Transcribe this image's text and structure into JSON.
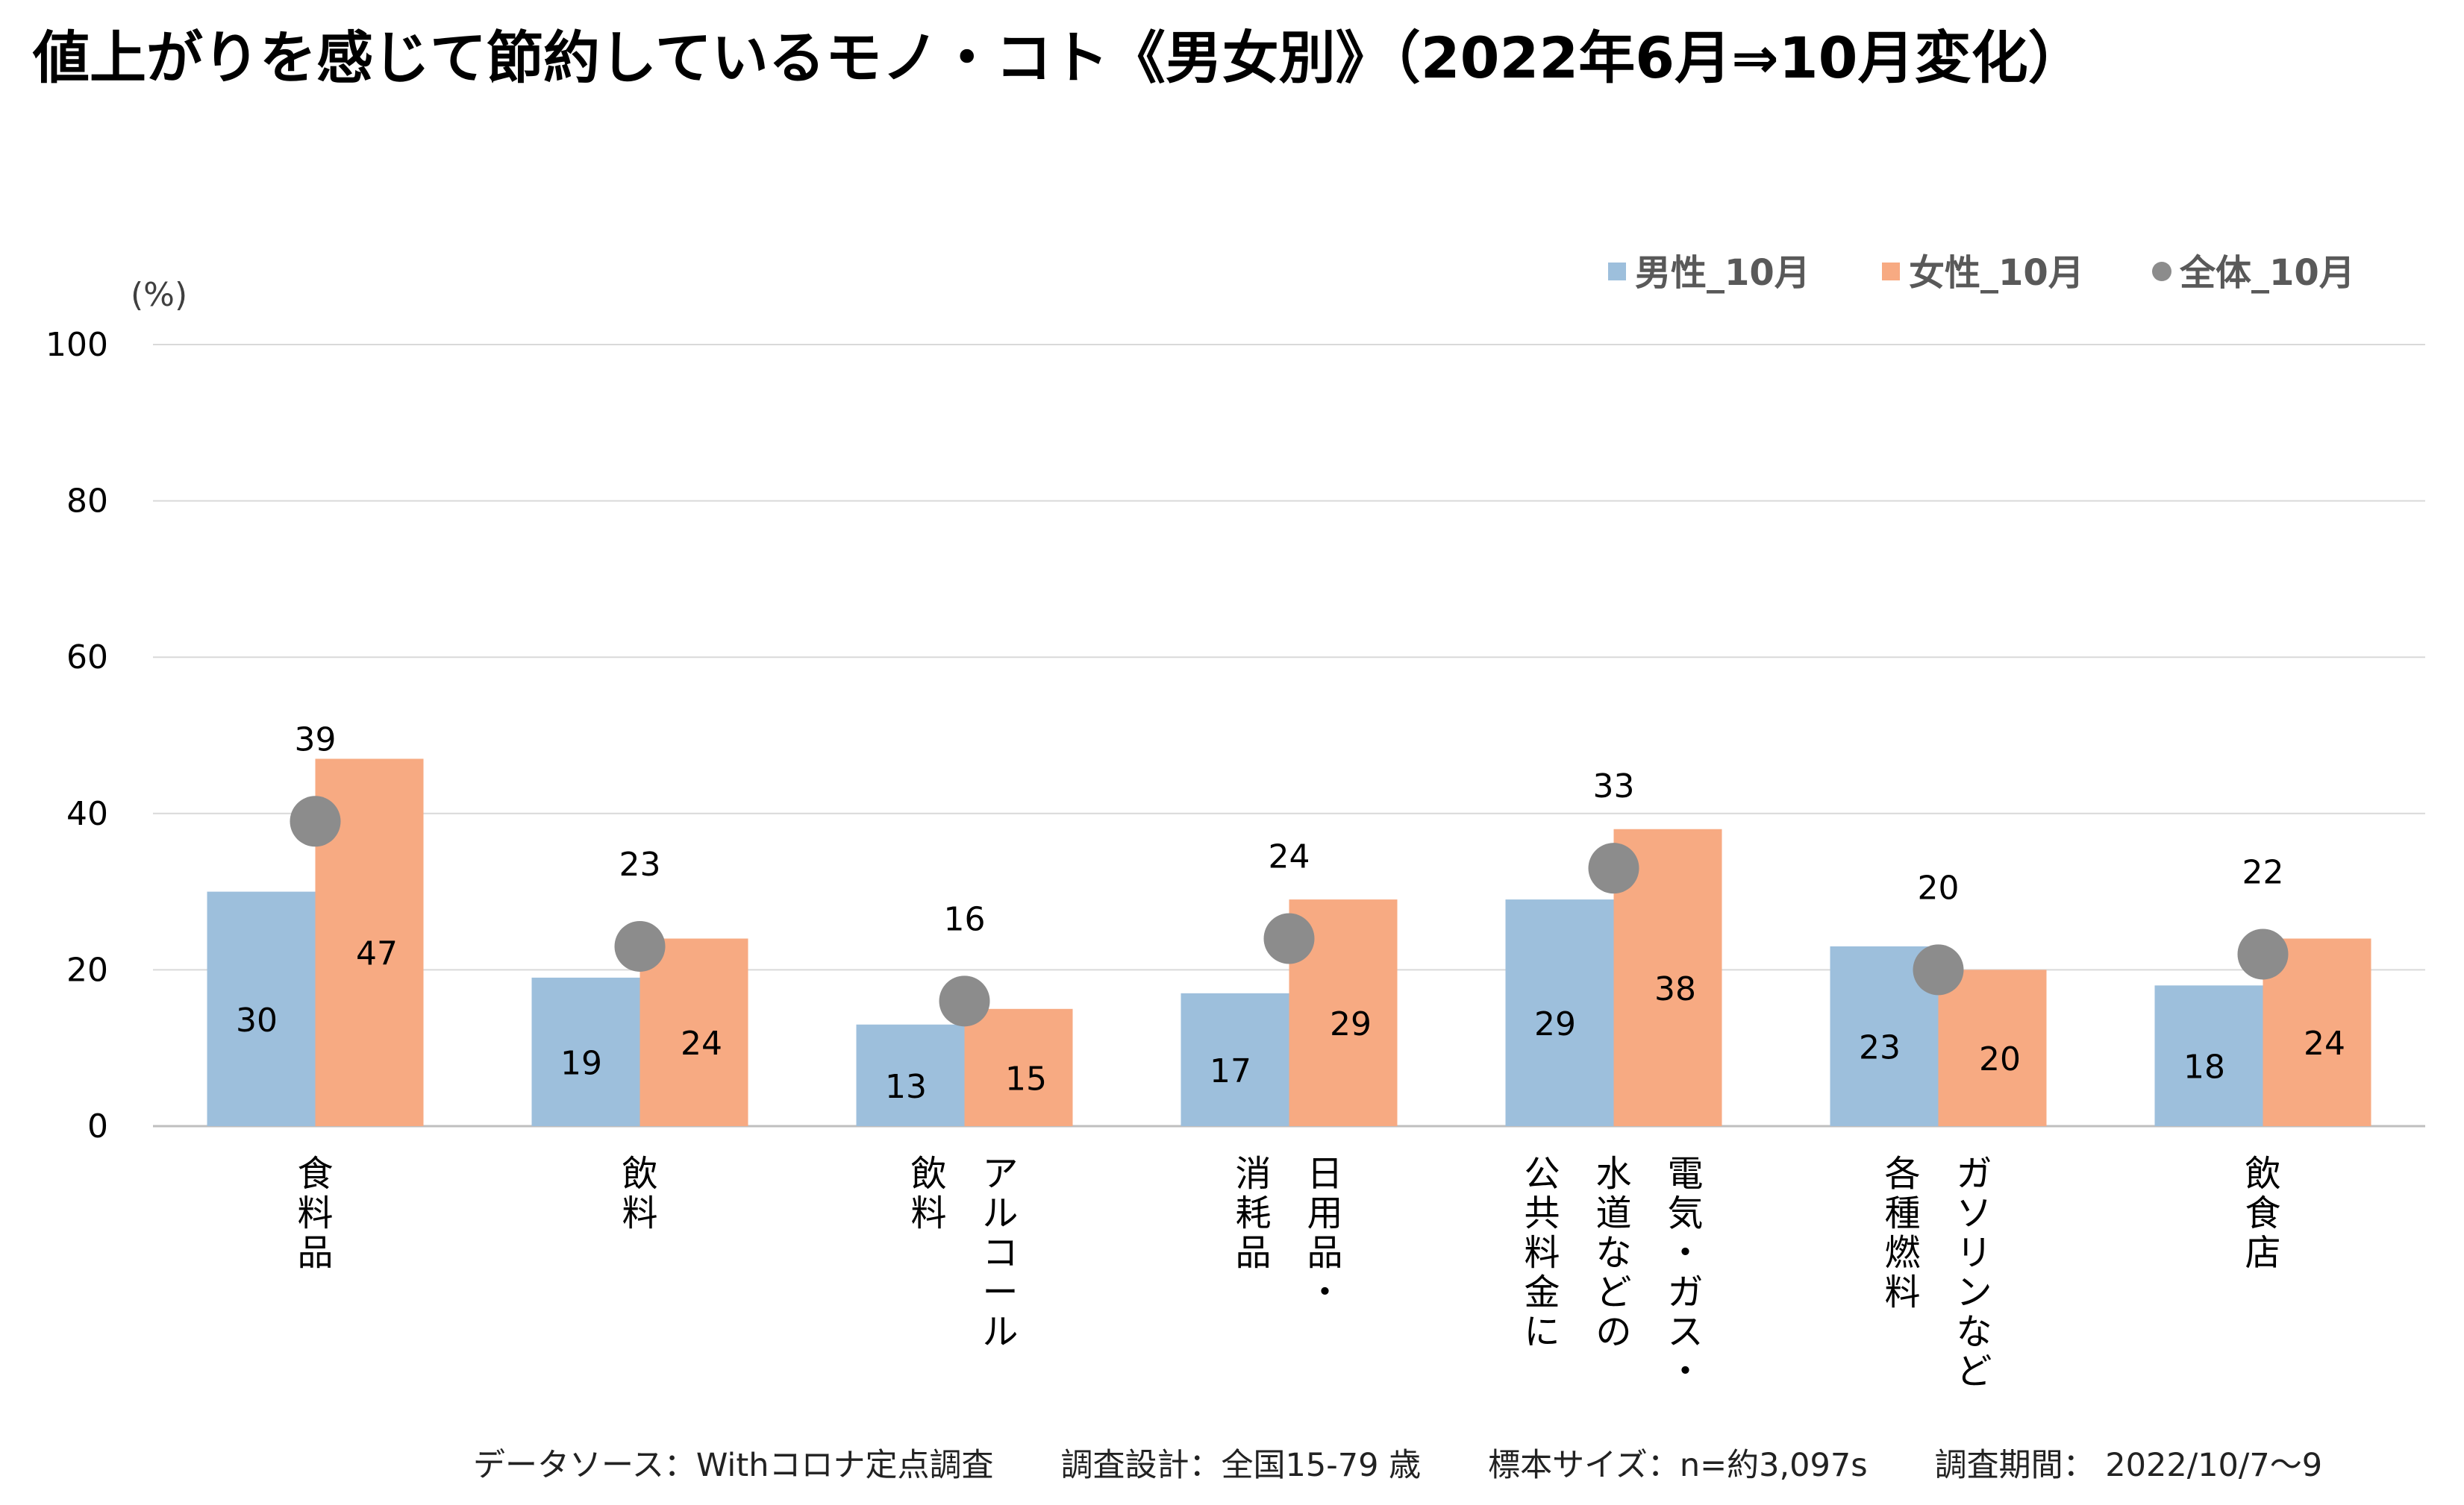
{
  "title": "値上がりを感じて節約しているモノ・コト《男女別》（2022年6月⇒10月変化）",
  "footer": {
    "source": "データソース：Withコロナ定点調査",
    "design": "調査設計：全国15-79 歳",
    "sample": "標本サイズ：n=約3,097s",
    "period": "調査期間： 2022/10/7〜9"
  },
  "chart_data": {
    "type": "bar",
    "unit_label": "(%)",
    "ylim": [
      0,
      100
    ],
    "yticks": [
      0,
      20,
      40,
      60,
      80,
      100
    ],
    "grid": true,
    "legend_position": "top-right",
    "categories": [
      [
        "食料品"
      ],
      [
        "飲料"
      ],
      [
        "アルコール",
        "飲料"
      ],
      [
        "日用品・",
        "消耗品"
      ],
      [
        "電気・ガス・",
        "水道などの",
        "公共料金に"
      ],
      [
        "ガソリンなど",
        "各種燃料"
      ],
      [
        "飲食店"
      ]
    ],
    "series": [
      {
        "name": "男性_10月",
        "kind": "bar",
        "color": "#9dbfdc",
        "values": [
          30,
          19,
          13,
          17,
          29,
          23,
          18
        ]
      },
      {
        "name": "女性_10月",
        "kind": "bar",
        "color": "#f7aa82",
        "values": [
          47,
          24,
          15,
          29,
          38,
          20,
          24
        ]
      },
      {
        "name": "全体_10月",
        "kind": "point",
        "color": "#8c8c8c",
        "values": [
          39,
          23,
          16,
          24,
          33,
          20,
          22
        ]
      }
    ]
  }
}
